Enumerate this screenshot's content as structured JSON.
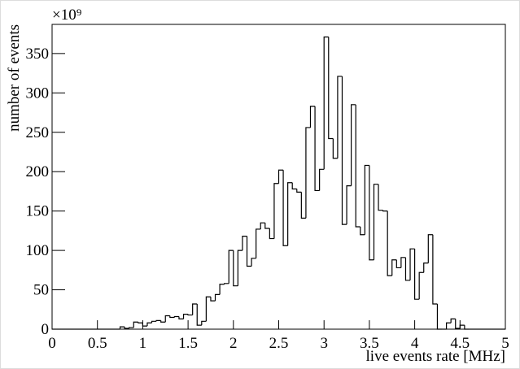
{
  "chart_data": {
    "type": "histogram",
    "xlabel": "live events rate [MHz]",
    "ylabel": "number of events",
    "y_multiplier": "×10⁹",
    "color": "#000000",
    "bins": [
      0,
      0.05,
      0.1,
      0.15,
      0.2,
      0.25,
      0.3,
      0.35,
      0.4,
      0.45,
      0.5,
      0.55,
      0.6,
      0.65,
      0.7,
      0.75,
      0.8,
      0.85,
      0.9,
      0.95,
      1,
      1.05,
      1.1,
      1.15,
      1.2,
      1.25,
      1.3,
      1.35,
      1.4,
      1.45,
      1.5,
      1.55,
      1.6,
      1.65,
      1.7,
      1.75,
      1.8,
      1.85,
      1.9,
      1.95,
      2,
      2.05,
      2.1,
      2.15,
      2.2,
      2.25,
      2.3,
      2.35,
      2.4,
      2.45,
      2.5,
      2.55,
      2.6,
      2.65,
      2.7,
      2.75,
      2.8,
      2.85,
      2.9,
      2.95,
      3,
      3.05,
      3.1,
      3.15,
      3.2,
      3.25,
      3.3,
      3.35,
      3.4,
      3.45,
      3.5,
      3.55,
      3.6,
      3.65,
      3.7,
      3.75,
      3.8,
      3.85,
      3.9,
      3.95,
      4,
      4.05,
      4.1,
      4.15,
      4.2,
      4.25,
      4.3,
      4.35,
      4.4,
      4.45,
      4.5,
      4.55,
      4.6,
      4.65,
      4.7,
      4.75,
      4.8,
      4.85,
      4.9,
      4.95,
      5
    ],
    "counts": [
      0,
      0,
      0,
      0,
      0,
      0,
      0,
      0,
      0,
      0,
      0,
      0,
      0,
      0,
      0,
      3,
      1,
      2,
      9,
      8,
      4,
      8,
      10,
      11,
      9,
      17,
      15,
      16,
      13,
      19,
      18,
      32,
      5,
      10,
      41,
      36,
      44,
      57,
      58,
      100,
      55,
      100,
      118,
      80,
      90,
      127,
      135,
      128,
      115,
      185,
      202,
      106,
      186,
      178,
      174,
      141,
      256,
      283,
      176,
      203,
      371,
      242,
      217,
      321,
      133,
      182,
      285,
      130,
      120,
      208,
      88,
      184,
      151,
      150,
      68,
      88,
      78,
      91,
      62,
      102,
      38,
      72,
      84,
      120,
      32,
      0,
      0,
      8,
      13,
      1,
      5,
      0,
      0,
      0,
      0,
      0,
      0,
      0,
      0,
      0
    ],
    "xlim": [
      0,
      5
    ],
    "ylim": [
      0,
      387
    ],
    "xticks": [
      0,
      0.5,
      1,
      1.5,
      2,
      2.5,
      3,
      3.5,
      4,
      4.5,
      5
    ],
    "yticks": [
      0,
      50,
      100,
      150,
      200,
      250,
      300,
      350
    ]
  }
}
